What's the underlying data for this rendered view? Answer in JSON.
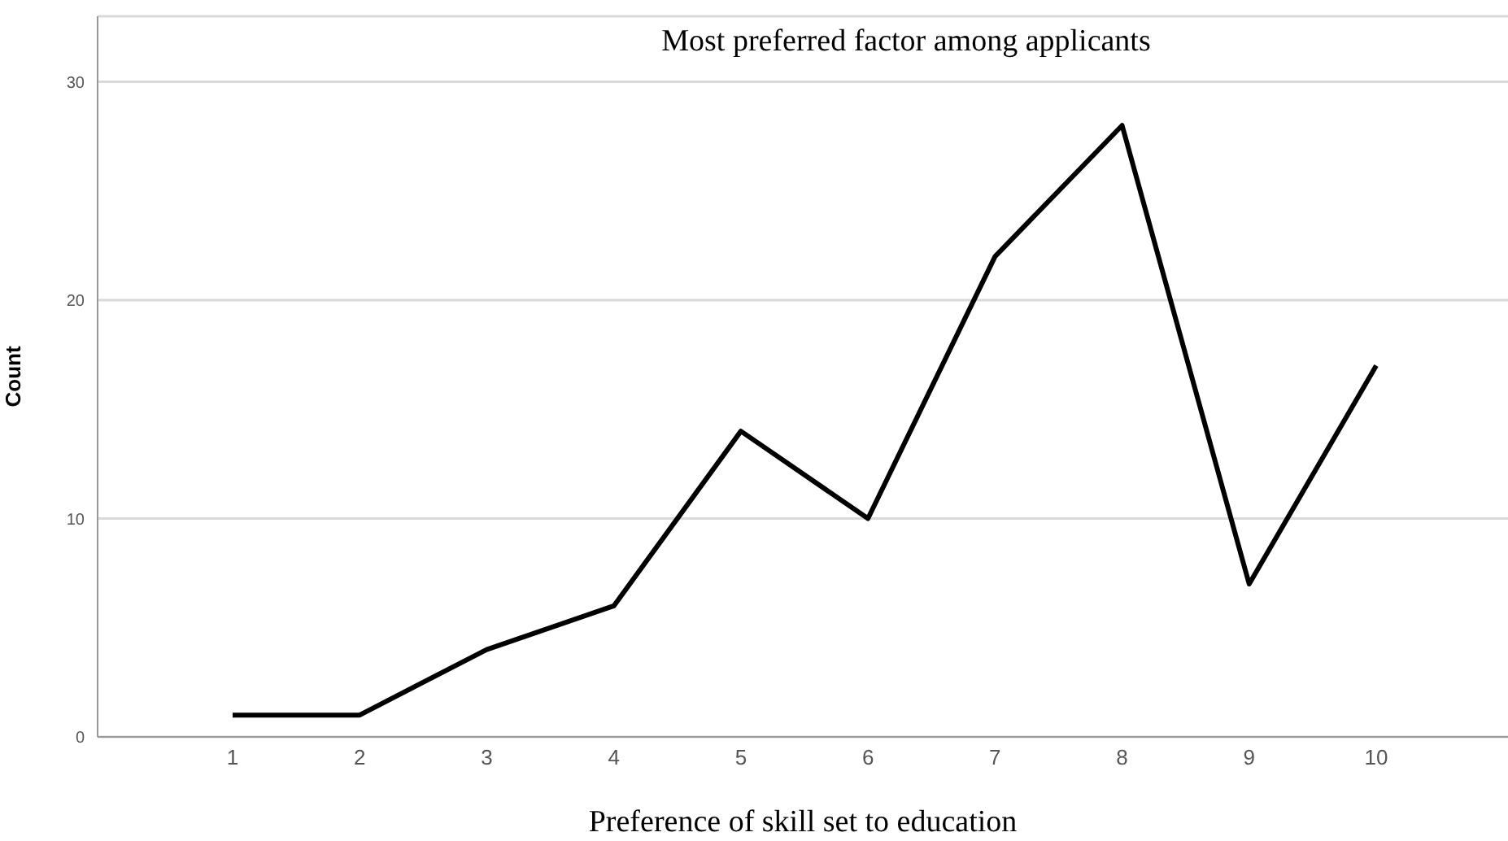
{
  "chart_data": {
    "type": "line",
    "title": "Most preferred factor among applicants",
    "xlabel": "Preference of skill set to education",
    "ylabel": "Count",
    "categories": [
      "1",
      "2",
      "3",
      "4",
      "5",
      "6",
      "7",
      "8",
      "9",
      "10"
    ],
    "values": [
      1,
      1,
      4,
      6,
      14,
      10,
      22,
      28,
      7,
      17
    ],
    "color": "#000000",
    "ylim": [
      0,
      33
    ],
    "yticks": [
      0,
      10,
      20,
      30
    ],
    "grid": "y",
    "marker": "none",
    "line_style": "solid"
  }
}
